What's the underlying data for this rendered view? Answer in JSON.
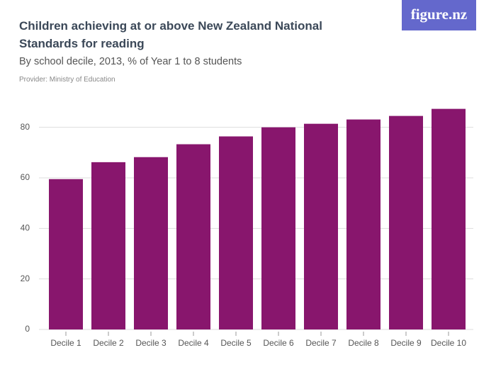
{
  "logo": "figure.nz",
  "chart_data": {
    "type": "bar",
    "title": "Children achieving at or above New Zealand National Standards for reading",
    "subtitle": "By school decile, 2013, % of Year 1 to 8 students",
    "provider": "Provider: Ministry of Education",
    "categories": [
      "Decile 1",
      "Decile 2",
      "Decile 3",
      "Decile 4",
      "Decile 5",
      "Decile 6",
      "Decile 7",
      "Decile 8",
      "Decile 9",
      "Decile 10"
    ],
    "values": [
      59.5,
      66.2,
      68.2,
      73.3,
      76.4,
      80.0,
      81.4,
      83.1,
      84.5,
      87.3
    ],
    "color": "#88166d",
    "ylim": [
      0,
      90
    ],
    "yticks": [
      0,
      20,
      40,
      60,
      80
    ],
    "grid": true
  }
}
